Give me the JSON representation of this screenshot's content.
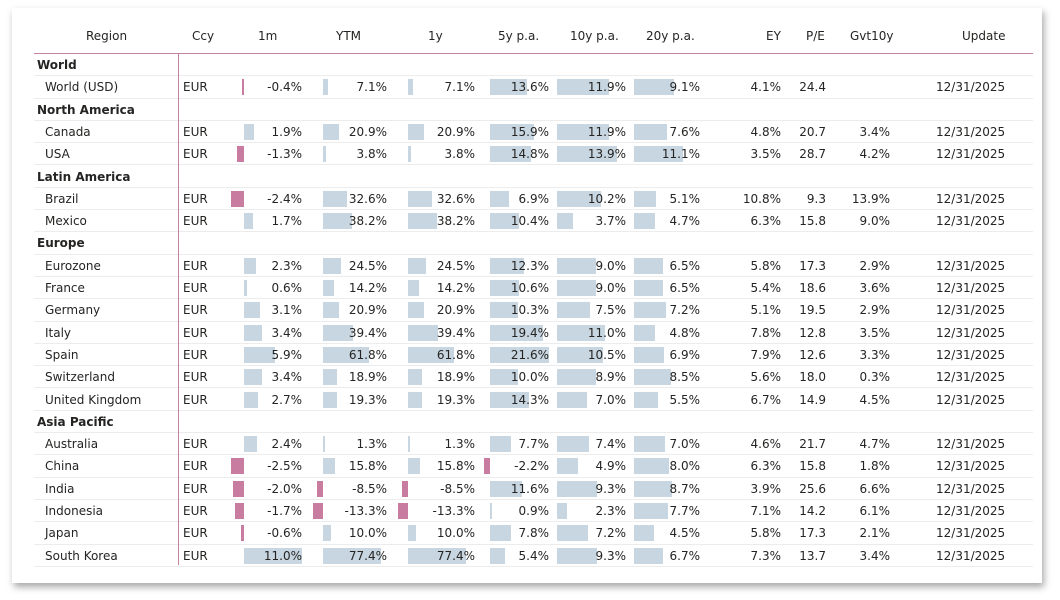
{
  "header": {
    "region": "Region",
    "ccy": "Ccy",
    "m1": "1m",
    "ytm": "YTM",
    "y1": "1y",
    "y5": "5y p.a.",
    "y10": "10y p.a.",
    "y20": "20y p.a.",
    "ey": "EY",
    "pe": "P/E",
    "gvt": "Gvt10y",
    "update": "Update"
  },
  "colors": {
    "positive_bar": "#c7d6e0",
    "negative_bar": "#c77ca0",
    "divider": "#c3819f"
  },
  "rows": [
    {
      "type": "group",
      "name": "World"
    },
    {
      "type": "data",
      "region": "World (USD)",
      "ccy": "EUR",
      "m1": "-0.4%",
      "ytm": "7.1%",
      "y1": "7.1%",
      "y5": "13.6%",
      "y10": "11.9%",
      "y20": "9.1%",
      "ey": "4.1%",
      "pe": "24.4",
      "gvt": "",
      "update": "12/31/2025"
    },
    {
      "type": "group",
      "name": "North America"
    },
    {
      "type": "data",
      "region": "Canada",
      "ccy": "EUR",
      "m1": "1.9%",
      "ytm": "20.9%",
      "y1": "20.9%",
      "y5": "15.9%",
      "y10": "11.9%",
      "y20": "7.6%",
      "ey": "4.8%",
      "pe": "20.7",
      "gvt": "3.4%",
      "update": "12/31/2025"
    },
    {
      "type": "data",
      "region": "USA",
      "ccy": "EUR",
      "m1": "-1.3%",
      "ytm": "3.8%",
      "y1": "3.8%",
      "y5": "14.8%",
      "y10": "13.9%",
      "y20": "11.1%",
      "ey": "3.5%",
      "pe": "28.7",
      "gvt": "4.2%",
      "update": "12/31/2025"
    },
    {
      "type": "group",
      "name": "Latin America"
    },
    {
      "type": "data",
      "region": "Brazil",
      "ccy": "EUR",
      "m1": "-2.4%",
      "ytm": "32.6%",
      "y1": "32.6%",
      "y5": "6.9%",
      "y10": "10.2%",
      "y20": "5.1%",
      "ey": "10.8%",
      "pe": "9.3",
      "gvt": "13.9%",
      "update": "12/31/2025"
    },
    {
      "type": "data",
      "region": "Mexico",
      "ccy": "EUR",
      "m1": "1.7%",
      "ytm": "38.2%",
      "y1": "38.2%",
      "y5": "10.4%",
      "y10": "3.7%",
      "y20": "4.7%",
      "ey": "6.3%",
      "pe": "15.8",
      "gvt": "9.0%",
      "update": "12/31/2025"
    },
    {
      "type": "group",
      "name": "Europe"
    },
    {
      "type": "data",
      "region": "Eurozone",
      "ccy": "EUR",
      "m1": "2.3%",
      "ytm": "24.5%",
      "y1": "24.5%",
      "y5": "12.3%",
      "y10": "9.0%",
      "y20": "6.5%",
      "ey": "5.8%",
      "pe": "17.3",
      "gvt": "2.9%",
      "update": "12/31/2025"
    },
    {
      "type": "data",
      "region": "France",
      "ccy": "EUR",
      "m1": "0.6%",
      "ytm": "14.2%",
      "y1": "14.2%",
      "y5": "10.6%",
      "y10": "9.0%",
      "y20": "6.5%",
      "ey": "5.4%",
      "pe": "18.6",
      "gvt": "3.6%",
      "update": "12/31/2025"
    },
    {
      "type": "data",
      "region": "Germany",
      "ccy": "EUR",
      "m1": "3.1%",
      "ytm": "20.9%",
      "y1": "20.9%",
      "y5": "10.3%",
      "y10": "7.5%",
      "y20": "7.2%",
      "ey": "5.1%",
      "pe": "19.5",
      "gvt": "2.9%",
      "update": "12/31/2025"
    },
    {
      "type": "data",
      "region": "Italy",
      "ccy": "EUR",
      "m1": "3.4%",
      "ytm": "39.4%",
      "y1": "39.4%",
      "y5": "19.4%",
      "y10": "11.0%",
      "y20": "4.8%",
      "ey": "7.8%",
      "pe": "12.8",
      "gvt": "3.5%",
      "update": "12/31/2025"
    },
    {
      "type": "data",
      "region": "Spain",
      "ccy": "EUR",
      "m1": "5.9%",
      "ytm": "61.8%",
      "y1": "61.8%",
      "y5": "21.6%",
      "y10": "10.5%",
      "y20": "6.9%",
      "ey": "7.9%",
      "pe": "12.6",
      "gvt": "3.3%",
      "update": "12/31/2025"
    },
    {
      "type": "data",
      "region": "Switzerland",
      "ccy": "EUR",
      "m1": "3.4%",
      "ytm": "18.9%",
      "y1": "18.9%",
      "y5": "10.0%",
      "y10": "8.9%",
      "y20": "8.5%",
      "ey": "5.6%",
      "pe": "18.0",
      "gvt": "0.3%",
      "update": "12/31/2025"
    },
    {
      "type": "data",
      "region": "United Kingdom",
      "ccy": "EUR",
      "m1": "2.7%",
      "ytm": "19.3%",
      "y1": "19.3%",
      "y5": "14.3%",
      "y10": "7.0%",
      "y20": "5.5%",
      "ey": "6.7%",
      "pe": "14.9",
      "gvt": "4.5%",
      "update": "12/31/2025"
    },
    {
      "type": "group",
      "name": "Asia Pacific"
    },
    {
      "type": "data",
      "region": "Australia",
      "ccy": "EUR",
      "m1": "2.4%",
      "ytm": "1.3%",
      "y1": "1.3%",
      "y5": "7.7%",
      "y10": "7.4%",
      "y20": "7.0%",
      "ey": "4.6%",
      "pe": "21.7",
      "gvt": "4.7%",
      "update": "12/31/2025"
    },
    {
      "type": "data",
      "region": "China",
      "ccy": "EUR",
      "m1": "-2.5%",
      "ytm": "15.8%",
      "y1": "15.8%",
      "y5": "-2.2%",
      "y10": "4.9%",
      "y20": "8.0%",
      "ey": "6.3%",
      "pe": "15.8",
      "gvt": "1.8%",
      "update": "12/31/2025"
    },
    {
      "type": "data",
      "region": "India",
      "ccy": "EUR",
      "m1": "-2.0%",
      "ytm": "-8.5%",
      "y1": "-8.5%",
      "y5": "11.6%",
      "y10": "9.3%",
      "y20": "8.7%",
      "ey": "3.9%",
      "pe": "25.6",
      "gvt": "6.6%",
      "update": "12/31/2025"
    },
    {
      "type": "data",
      "region": "Indonesia",
      "ccy": "EUR",
      "m1": "-1.7%",
      "ytm": "-13.3%",
      "y1": "-13.3%",
      "y5": "0.9%",
      "y10": "2.3%",
      "y20": "7.7%",
      "ey": "7.1%",
      "pe": "14.2",
      "gvt": "6.1%",
      "update": "12/31/2025"
    },
    {
      "type": "data",
      "region": "Japan",
      "ccy": "EUR",
      "m1": "-0.6%",
      "ytm": "10.0%",
      "y1": "10.0%",
      "y5": "7.8%",
      "y10": "7.2%",
      "y20": "4.5%",
      "ey": "5.8%",
      "pe": "17.3",
      "gvt": "2.1%",
      "update": "12/31/2025"
    },
    {
      "type": "data",
      "region": "South Korea",
      "ccy": "EUR",
      "m1": "11.0%",
      "ytm": "77.4%",
      "y1": "77.4%",
      "y5": "5.4%",
      "y10": "9.3%",
      "y20": "6.7%",
      "ey": "7.3%",
      "pe": "13.7",
      "gvt": "3.4%",
      "update": "12/31/2025"
    }
  ]
}
